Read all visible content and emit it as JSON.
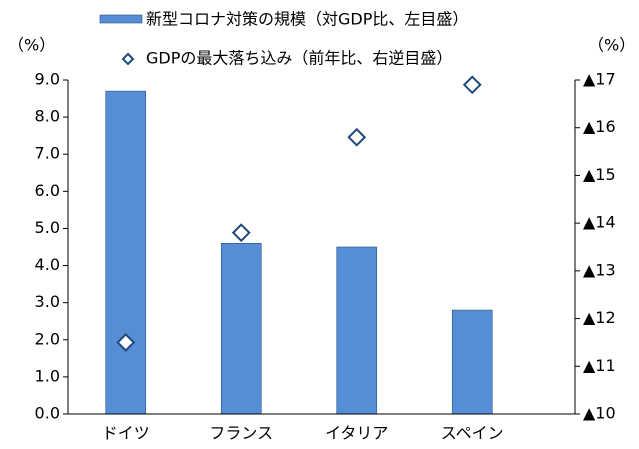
{
  "chart_data": {
    "type": "bar_diamond",
    "y_label": "（%）",
    "y2_label": "（%）",
    "categories": [
      "ドイツ",
      "フランス",
      "イタリア",
      "スペイン"
    ],
    "series": [
      {
        "name": "新型コロナ対策の規模（対GDP比、左目盛）",
        "color": "#558ed5",
        "values": [
          8.7,
          4.6,
          4.5,
          2.8
        ]
      },
      {
        "name": "GDPの最大落ち込み（前年比、右逆目盛）",
        "color": "#1f497d",
        "axis": "y2",
        "values": [
          -11.5,
          -13.8,
          -15.8,
          -16.9
        ]
      }
    ],
    "ylim": [
      0,
      9
    ],
    "yticks": [
      {
        "value": 0,
        "label": "0.0"
      },
      {
        "value": 1,
        "label": "1.0"
      },
      {
        "value": 2,
        "label": "2.0"
      },
      {
        "value": 3,
        "label": "3.0"
      },
      {
        "value": 4,
        "label": "4.0"
      },
      {
        "value": 5,
        "label": "5.0"
      },
      {
        "value": 6,
        "label": "6.0"
      },
      {
        "value": 7,
        "label": "7.0"
      },
      {
        "value": 8,
        "label": "8.0"
      },
      {
        "value": 9,
        "label": "9.0"
      }
    ],
    "y2lim": [
      -10,
      -17
    ],
    "y2ticks": [
      {
        "value": -10,
        "label": "▲10"
      },
      {
        "value": -11,
        "label": "▲11"
      },
      {
        "value": -12,
        "label": "▲12"
      },
      {
        "value": -13,
        "label": "▲13"
      },
      {
        "value": -14,
        "label": "▲14"
      },
      {
        "value": -15,
        "label": "▲15"
      },
      {
        "value": -16,
        "label": "▲16"
      },
      {
        "value": -17,
        "label": "▲17"
      }
    ]
  }
}
